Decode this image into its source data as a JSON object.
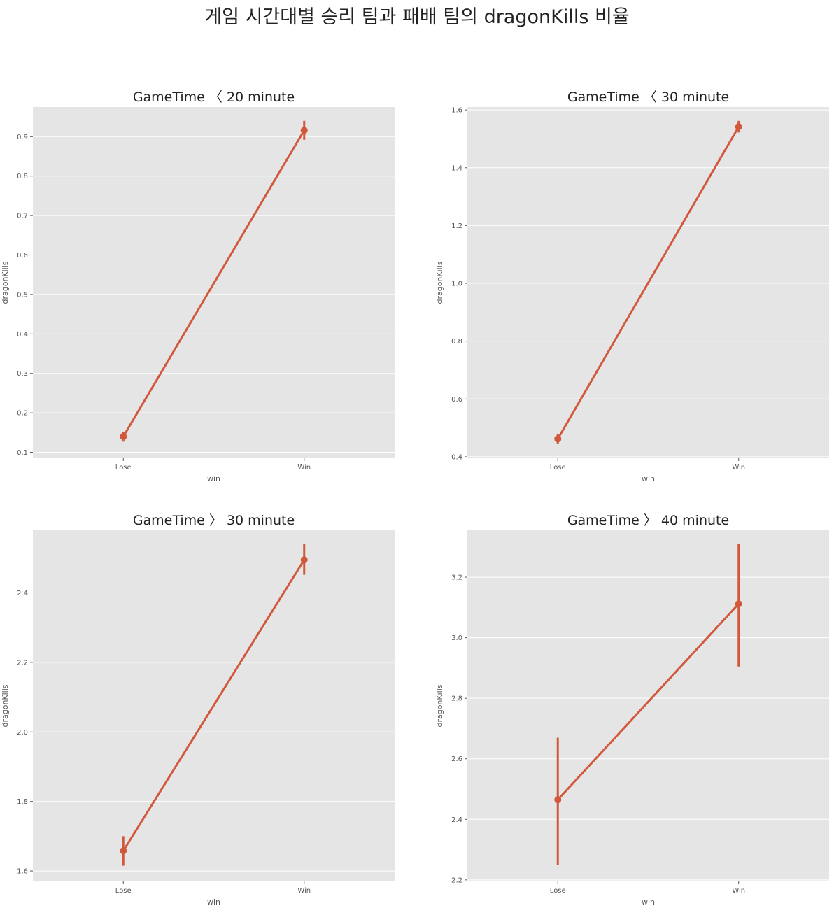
{
  "suptitle": "게임 시간대별 승리 팀과 패배 팀의 dragonKills 비율",
  "colors": {
    "accent": "#d1583a",
    "panel_bg": "#e5e5e5",
    "grid": "#ffffff"
  },
  "chart_data": [
    {
      "type": "line",
      "title": "GameTime 〈 20 minute",
      "xlabel": "win",
      "ylabel": "dragonKills",
      "categories": [
        "Lose",
        "Win"
      ],
      "values": [
        0.14,
        0.916
      ],
      "ci_low": [
        0.127,
        0.892
      ],
      "ci_high": [
        0.152,
        0.94
      ],
      "yticks": [
        "0.1",
        "0.2",
        "0.3",
        "0.4",
        "0.5",
        "0.6",
        "0.7",
        "0.8",
        "0.9"
      ],
      "ylim": [
        0.085,
        0.975
      ],
      "grid": true
    },
    {
      "type": "line",
      "title": "GameTime 〈 30 minute",
      "xlabel": "win",
      "ylabel": "dragonKills",
      "categories": [
        "Lose",
        "Win"
      ],
      "values": [
        0.462,
        1.542
      ],
      "ci_low": [
        0.445,
        1.522
      ],
      "ci_high": [
        0.48,
        1.562
      ],
      "yticks": [
        "0.4",
        "0.6",
        "0.8",
        "1.0",
        "1.2",
        "1.4",
        "1.6"
      ],
      "ylim": [
        0.395,
        1.61
      ],
      "grid": true
    },
    {
      "type": "line",
      "title": "GameTime 〉 30 minute",
      "xlabel": "win",
      "ylabel": "dragonKills",
      "categories": [
        "Lose",
        "Win"
      ],
      "values": [
        1.658,
        2.495
      ],
      "ci_low": [
        1.615,
        2.452
      ],
      "ci_high": [
        1.7,
        2.54
      ],
      "yticks": [
        "1.6",
        "1.8",
        "2.0",
        "2.2",
        "2.4"
      ],
      "ylim": [
        1.57,
        2.58
      ],
      "grid": true
    },
    {
      "type": "line",
      "title": "GameTime 〉 40 minute",
      "xlabel": "win",
      "ylabel": "dragonKills",
      "categories": [
        "Lose",
        "Win"
      ],
      "values": [
        2.465,
        3.112
      ],
      "ci_low": [
        2.25,
        2.905
      ],
      "ci_high": [
        2.67,
        3.31
      ],
      "yticks": [
        "2.2",
        "2.4",
        "2.6",
        "2.8",
        "3.0",
        "3.2"
      ],
      "ylim": [
        2.195,
        3.355
      ],
      "grid": true
    }
  ]
}
